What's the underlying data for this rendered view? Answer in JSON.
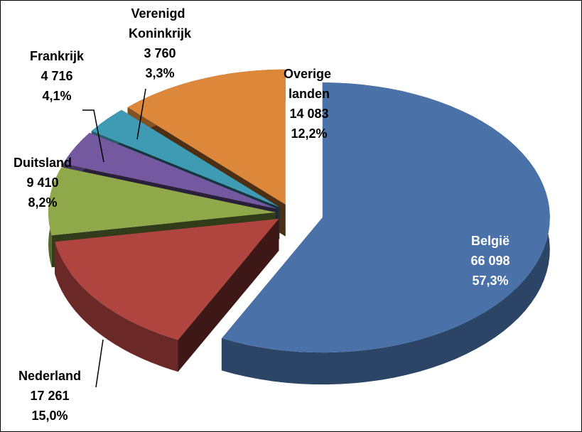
{
  "chart_data": {
    "type": "pie3d",
    "categories": [
      "België",
      "Nederland",
      "Duitsland",
      "Frankrijk",
      "Verenigd Koninkrijk",
      "Overige landen"
    ],
    "values": [
      66098,
      17261,
      9410,
      4716,
      3760,
      14083
    ],
    "value_labels": [
      "66 098",
      "17 261",
      "9 410",
      "4 716",
      "3 760",
      "14 083"
    ],
    "percent_labels": [
      "57,3%",
      "15,0%",
      "8,2%",
      "4,1%",
      "3,3%",
      "12,2%"
    ],
    "colors": [
      "#4a72a8",
      "#b0453f",
      "#8ea84a",
      "#7459a0",
      "#3e9bb3",
      "#dc873a"
    ]
  }
}
